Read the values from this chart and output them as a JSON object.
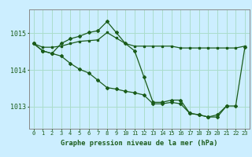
{
  "title": "Graphe pression niveau de la mer (hPa)",
  "bg_color": "#cceeff",
  "grid_color": "#aaddcc",
  "line_color": "#1a5c1a",
  "x_labels": [
    "0",
    "1",
    "2",
    "3",
    "4",
    "5",
    "6",
    "7",
    "8",
    "9",
    "10",
    "11",
    "12",
    "13",
    "14",
    "15",
    "16",
    "17",
    "18",
    "19",
    "20",
    "21",
    "22",
    "23"
  ],
  "yticks": [
    1013,
    1014,
    1015
  ],
  "ylim": [
    1012.4,
    1015.65
  ],
  "series1": [
    1014.72,
    1014.62,
    1014.62,
    1014.65,
    1014.72,
    1014.78,
    1014.8,
    1014.82,
    1015.02,
    1014.87,
    1014.72,
    1014.65,
    1014.65,
    1014.65,
    1014.65,
    1014.65,
    1014.6,
    1014.6,
    1014.6,
    1014.6,
    1014.6,
    1014.6,
    1014.6,
    1014.65
  ],
  "series2": [
    1014.72,
    1014.52,
    1014.45,
    1014.72,
    1014.85,
    1014.92,
    1015.02,
    1015.07,
    1015.32,
    1015.02,
    1014.72,
    1014.52,
    1013.82,
    1013.12,
    1013.12,
    1013.18,
    1013.18,
    1012.82,
    1012.78,
    1012.72,
    1012.78,
    1013.02,
    null,
    null
  ],
  "series3": [
    1014.72,
    1014.52,
    1014.45,
    1014.38,
    1014.18,
    1014.02,
    1013.92,
    1013.72,
    1013.52,
    1013.48,
    1013.42,
    1013.38,
    1013.32,
    1013.08,
    1013.08,
    1013.12,
    1013.08,
    1012.82,
    1012.78,
    1012.72,
    1012.72,
    1013.02,
    1013.02,
    1014.62
  ]
}
